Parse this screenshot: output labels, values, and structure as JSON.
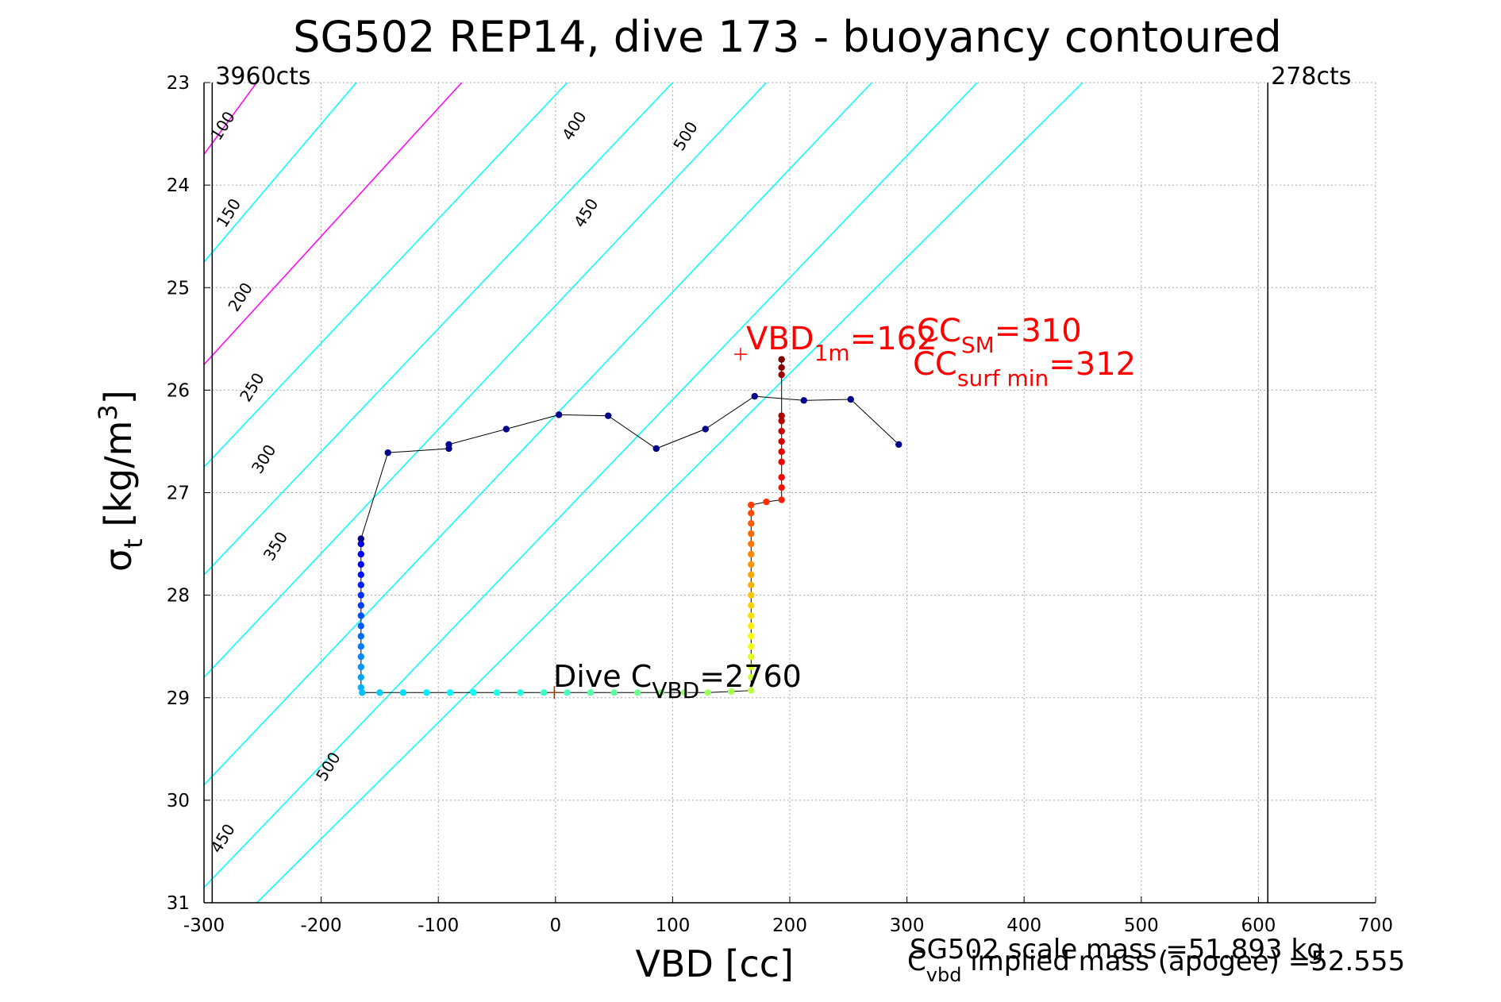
{
  "chart_data": {
    "type": "scatter",
    "title": "SG502 REP14, dive 173 - buoyancy contoured",
    "xlabel": "VBD [cc]",
    "ylabel": {
      "main": "σ",
      "sub": "t",
      "rest": " [kg/m",
      "sup": "3",
      "close": "]"
    },
    "xlim": [
      -300,
      700
    ],
    "ylim": [
      23,
      31
    ],
    "y_reversed": true,
    "grid": true,
    "xticks": [
      -300,
      -200,
      -100,
      0,
      100,
      200,
      300,
      400,
      500,
      600,
      700
    ],
    "yticks": [
      23,
      24,
      25,
      26,
      27,
      28,
      29,
      30,
      31
    ],
    "vlines": [
      {
        "x": -293,
        "label": "3960cts",
        "color": "#000000"
      },
      {
        "x": 608,
        "label": "278cts",
        "color": "#000000"
      }
    ],
    "contours": [
      {
        "label": "100",
        "color": "#ff00ff",
        "p0": [
          -300,
          23.7
        ],
        "p1": [
          -255,
          23
        ]
      },
      {
        "label": "150",
        "color": "#00ffff",
        "p0": [
          -300,
          24.75
        ],
        "p1": [
          -170,
          23
        ]
      },
      {
        "label": "200",
        "color": "#ff00ff",
        "p0": [
          -300,
          25.75
        ],
        "p1": [
          -80,
          23
        ]
      },
      {
        "label": "250",
        "color": "#00ffff",
        "p0": [
          -300,
          26.75
        ],
        "p1": [
          10,
          23
        ]
      },
      {
        "label": "300",
        "color": "#00ffff",
        "p0": [
          -300,
          27.8
        ],
        "p1": [
          100,
          23
        ]
      },
      {
        "label": "350",
        "color": "#00ffff",
        "p0": [
          -300,
          28.8
        ],
        "p1": [
          180,
          23
        ]
      },
      {
        "label": "400",
        "color": "#00ffff",
        "p0": [
          -300,
          29.85
        ],
        "p1": [
          270,
          23
        ]
      },
      {
        "label": "450",
        "color": "#00ffff",
        "p0": [
          -300,
          30.85
        ],
        "p1": [
          360,
          23
        ]
      },
      {
        "label": "500",
        "color": "#00ffff",
        "p0": [
          -255,
          31
        ],
        "p1": [
          450,
          23
        ]
      }
    ],
    "contour_labels": [
      {
        "text": "100",
        "x": -280,
        "y": 23.45
      },
      {
        "text": "150",
        "x": -275,
        "y": 24.3
      },
      {
        "text": "200",
        "x": -265,
        "y": 25.12
      },
      {
        "text": "250",
        "x": -255,
        "y": 26.0
      },
      {
        "text": "300",
        "x": -245,
        "y": 26.7
      },
      {
        "text": "350",
        "x": -235,
        "y": 27.55
      },
      {
        "text": "500",
        "x": -190,
        "y": 29.7
      },
      {
        "text": "450",
        "x": -280,
        "y": 30.4
      },
      {
        "text": "400",
        "x": 20,
        "y": 23.45
      },
      {
        "text": "450",
        "x": 30,
        "y": 24.3
      },
      {
        "text": "500",
        "x": 115,
        "y": 23.55
      }
    ],
    "series": [
      {
        "kind": "dive_path",
        "color_scale": "jet",
        "points": [
          [
            -166,
            27.5
          ],
          [
            -166,
            27.6
          ],
          [
            -166,
            27.7
          ],
          [
            -166,
            27.8
          ],
          [
            -166,
            27.9
          ],
          [
            -166,
            28.0
          ],
          [
            -166,
            28.1
          ],
          [
            -166,
            28.2
          ],
          [
            -166,
            28.3
          ],
          [
            -166,
            28.4
          ],
          [
            -166,
            28.5
          ],
          [
            -166,
            28.6
          ],
          [
            -166,
            28.7
          ],
          [
            -166,
            28.8
          ],
          [
            -166,
            28.9
          ],
          [
            -165,
            28.95
          ],
          [
            -150,
            28.95
          ],
          [
            -130,
            28.95
          ],
          [
            -110,
            28.95
          ],
          [
            -90,
            28.95
          ],
          [
            -70,
            28.95
          ],
          [
            -50,
            28.95
          ],
          [
            -30,
            28.95
          ],
          [
            -10,
            28.95
          ],
          [
            10,
            28.95
          ],
          [
            30,
            28.95
          ],
          [
            50,
            28.95
          ],
          [
            70,
            28.95
          ],
          [
            90,
            28.95
          ],
          [
            110,
            28.95
          ],
          [
            130,
            28.95
          ],
          [
            150,
            28.94
          ],
          [
            167,
            28.93
          ],
          [
            167,
            28.8
          ],
          [
            167,
            28.7
          ],
          [
            167,
            28.6
          ],
          [
            167,
            28.5
          ],
          [
            167,
            28.4
          ],
          [
            167,
            28.3
          ],
          [
            167,
            28.2
          ],
          [
            167,
            28.1
          ],
          [
            167,
            28.0
          ],
          [
            167,
            27.9
          ],
          [
            167,
            27.8
          ],
          [
            167,
            27.7
          ],
          [
            167,
            27.6
          ],
          [
            167,
            27.5
          ],
          [
            167,
            27.4
          ],
          [
            167,
            27.3
          ],
          [
            167,
            27.2
          ],
          [
            167,
            27.12
          ],
          [
            180,
            27.09
          ],
          [
            193,
            27.07
          ],
          [
            193,
            26.95
          ],
          [
            193,
            26.85
          ],
          [
            193,
            26.7
          ],
          [
            193,
            26.6
          ],
          [
            193,
            26.5
          ],
          [
            193,
            26.4
          ],
          [
            193,
            26.3
          ],
          [
            193,
            26.25
          ],
          [
            193,
            25.85
          ],
          [
            193,
            25.78
          ],
          [
            193,
            25.7
          ]
        ]
      },
      {
        "kind": "line_with_markers",
        "color": "#00008b",
        "points": [
          [
            -166,
            27.45
          ],
          [
            -143,
            26.61
          ],
          [
            -91,
            26.57
          ],
          [
            -91,
            26.53
          ],
          [
            -42,
            26.38
          ],
          [
            3,
            26.24
          ],
          [
            45,
            26.25
          ],
          [
            86,
            26.57
          ],
          [
            128,
            26.38
          ],
          [
            170,
            26.06
          ],
          [
            212,
            26.1
          ],
          [
            252,
            26.09
          ],
          [
            293,
            26.53
          ]
        ]
      }
    ],
    "markers": [
      {
        "symbol": "+",
        "x": 158,
        "y": 25.65,
        "color": "#ff0000"
      },
      {
        "symbol": "+",
        "x": -1,
        "y": 28.95,
        "color": "#8b4513"
      }
    ],
    "annotations": {
      "vbd_1m": {
        "main": "VBD",
        "sub": "1m",
        "rest": "=162"
      },
      "cc_sm": {
        "main": "CC",
        "sub": "SM",
        "rest": "=310"
      },
      "cc_surf": {
        "main": "CC",
        "sub": "surf min",
        "rest": "=312"
      },
      "dive_cvbd": {
        "main": "Dive C",
        "sub": "VBD",
        "rest": "=2760"
      },
      "scale_mass": "SG502 scale mass =51.893 kg",
      "implied_mass": {
        "main": "C",
        "sub": "vbd",
        "rest": " implied mass (apogee) =52.555"
      }
    }
  },
  "colors": {
    "axis": "#000000",
    "grid": "#a9a9a9",
    "annotation_red": "#ff0000"
  }
}
